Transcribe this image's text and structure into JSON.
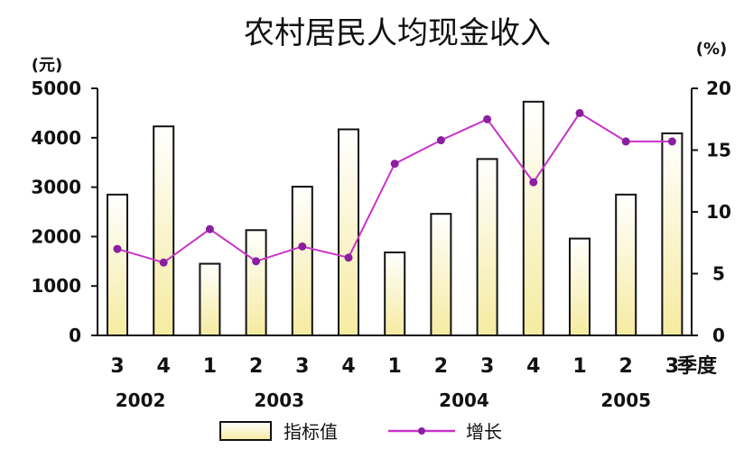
{
  "chart_data": {
    "type": "bar",
    "title": "农村居民人均现金收入",
    "left_unit": "(元)",
    "right_unit": "(%)",
    "x_suffix": "季度",
    "categories": [
      "3",
      "4",
      "1",
      "2",
      "3",
      "4",
      "1",
      "2",
      "3",
      "4",
      "1",
      "2",
      "3"
    ],
    "years": [
      {
        "label": "2002",
        "from": 0,
        "to": 1
      },
      {
        "label": "2003",
        "from": 2,
        "to": 5
      },
      {
        "label": "2004",
        "from": 6,
        "to": 9
      },
      {
        "label": "2005",
        "from": 10,
        "to": 12
      }
    ],
    "left_axis": {
      "min": 0,
      "max": 5000,
      "ticks": [
        "0",
        "1000",
        "2000",
        "3000",
        "4000",
        "5000"
      ]
    },
    "right_axis": {
      "min": 0,
      "max": 20,
      "ticks": [
        "0",
        "5",
        "10",
        "15",
        "20"
      ]
    },
    "series": [
      {
        "name": "指标值",
        "kind": "bar",
        "axis": "left",
        "values": [
          2850,
          4230,
          1450,
          2130,
          3010,
          4170,
          1680,
          2460,
          3570,
          4730,
          1960,
          2850,
          4090
        ]
      },
      {
        "name": "增长",
        "kind": "line",
        "axis": "right",
        "values": [
          7.0,
          5.9,
          8.6,
          6.0,
          7.2,
          6.3,
          13.9,
          15.8,
          17.5,
          12.4,
          18.0,
          15.7,
          15.7
        ]
      }
    ],
    "colors": {
      "bar_fill_top": "#ffffff",
      "bar_fill_bottom": "#f5eba0",
      "bar_stroke": "#111111",
      "line": "#c833c8",
      "marker": "#8a1fa0"
    },
    "legend": {
      "placement": "bottom"
    }
  }
}
